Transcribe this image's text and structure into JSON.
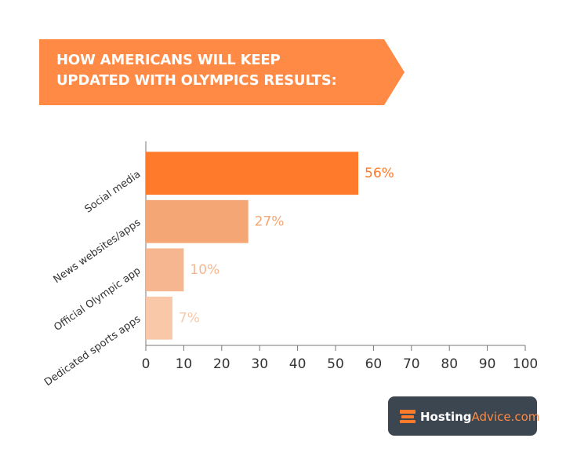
{
  "chart_data": {
    "type": "bar",
    "orientation": "horizontal",
    "title": "HOW AMERICANS WILL KEEP UPDATED WITH OLYMPICS RESULTS:",
    "categories": [
      "Social media",
      "News websites/apps",
      "Official Olympic app",
      "Dedicated sports apps"
    ],
    "values": [
      56,
      27,
      10,
      7
    ],
    "value_labels": [
      "56%",
      "27%",
      "10%",
      "7%"
    ],
    "colors": [
      "#ff7a2b",
      "#f4a674",
      "#f6b68f",
      "#f8c8a8"
    ],
    "xlim": [
      0,
      100
    ],
    "xticks": [
      0,
      10,
      20,
      30,
      40,
      50,
      60,
      70,
      80,
      90,
      100
    ],
    "grid": false
  },
  "logo": {
    "brand": "Hosting",
    "suffix": "Advice.com"
  }
}
